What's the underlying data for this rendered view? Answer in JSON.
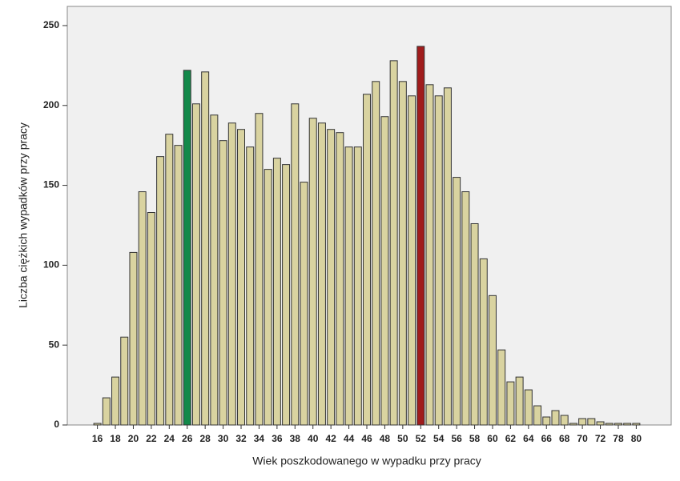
{
  "chart_data": {
    "type": "bar",
    "x_label": "Wiek poszkodowanego w wypadku przy pracy",
    "y_label": "Liczba ciężkich wypadków przy pracy",
    "categories": [
      16,
      null,
      18,
      null,
      20,
      null,
      22,
      null,
      24,
      null,
      26,
      null,
      28,
      null,
      30,
      null,
      32,
      null,
      34,
      null,
      36,
      null,
      38,
      null,
      40,
      null,
      42,
      null,
      44,
      null,
      46,
      null,
      48,
      null,
      50,
      null,
      52,
      null,
      54,
      null,
      56,
      null,
      58,
      null,
      60,
      null,
      62,
      null,
      64,
      null,
      66,
      null,
      68,
      null,
      70,
      null,
      72,
      null,
      78,
      null,
      80
    ],
    "values": [
      1,
      17,
      30,
      55,
      108,
      146,
      133,
      168,
      182,
      175,
      222,
      201,
      221,
      194,
      178,
      189,
      185,
      174,
      195,
      160,
      167,
      163,
      201,
      152,
      192,
      189,
      185,
      183,
      174,
      174,
      207,
      215,
      193,
      228,
      215,
      206,
      237,
      213,
      206,
      211,
      155,
      146,
      126,
      104,
      81,
      47,
      27,
      30,
      22,
      12,
      5,
      9,
      6,
      1,
      4,
      4,
      2,
      1,
      1,
      1,
      1
    ],
    "colors": [
      "#d9d3a0",
      "#d9d3a0",
      "#d9d3a0",
      "#d9d3a0",
      "#d9d3a0",
      "#d9d3a0",
      "#d9d3a0",
      "#d9d3a0",
      "#d9d3a0",
      "#d9d3a0",
      "#13894a",
      "#d9d3a0",
      "#d9d3a0",
      "#d9d3a0",
      "#d9d3a0",
      "#d9d3a0",
      "#d9d3a0",
      "#d9d3a0",
      "#d9d3a0",
      "#d9d3a0",
      "#d9d3a0",
      "#d9d3a0",
      "#d9d3a0",
      "#d9d3a0",
      "#d9d3a0",
      "#d9d3a0",
      "#d9d3a0",
      "#d9d3a0",
      "#d9d3a0",
      "#d9d3a0",
      "#d9d3a0",
      "#d9d3a0",
      "#d9d3a0",
      "#d9d3a0",
      "#d9d3a0",
      "#d9d3a0",
      "#a01c1c",
      "#d9d3a0",
      "#d9d3a0",
      "#d9d3a0",
      "#d9d3a0",
      "#d9d3a0",
      "#d9d3a0",
      "#d9d3a0",
      "#d9d3a0",
      "#d9d3a0",
      "#d9d3a0",
      "#d9d3a0",
      "#d9d3a0",
      "#d9d3a0",
      "#d9d3a0",
      "#d9d3a0",
      "#d9d3a0",
      "#d9d3a0",
      "#d9d3a0",
      "#d9d3a0",
      "#d9d3a0",
      "#d9d3a0",
      "#d9d3a0",
      "#d9d3a0",
      "#d9d3a0"
    ],
    "ylim": [
      0,
      262
    ],
    "yticks": [
      0,
      50,
      100,
      150,
      200,
      250
    ]
  }
}
